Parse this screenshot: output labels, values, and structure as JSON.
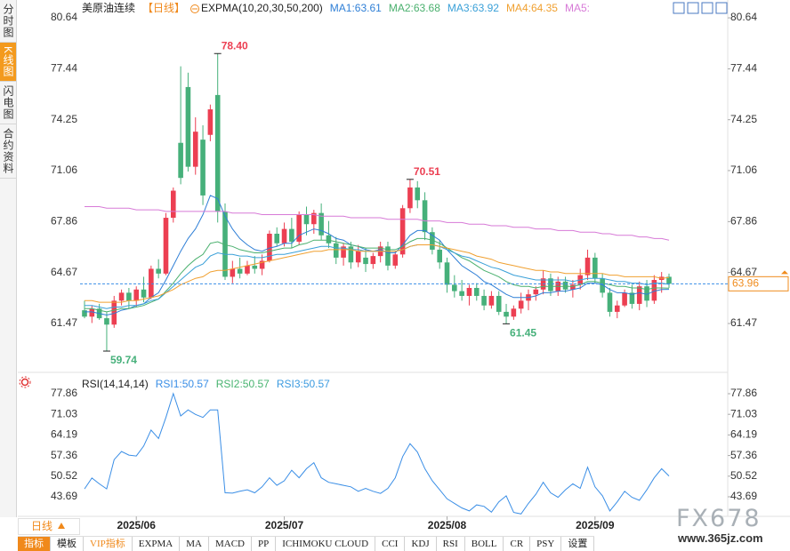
{
  "sidebar": [
    {
      "label": "分时图"
    },
    {
      "label": "K线图",
      "active": true
    },
    {
      "label": "闪电图"
    },
    {
      "label": "合约资料"
    }
  ],
  "toolbar": [
    {
      "label": "指标",
      "active": true
    },
    {
      "label": "模板"
    },
    {
      "label": "VIP指标",
      "highlight": true
    },
    {
      "label": "EXPMA"
    },
    {
      "label": "MA"
    },
    {
      "label": "MACD"
    },
    {
      "label": "PP"
    },
    {
      "label": "ICHIMOKU CLOUD"
    },
    {
      "label": "CCI"
    },
    {
      "label": "KDJ"
    },
    {
      "label": "RSI"
    },
    {
      "label": "BOLL"
    },
    {
      "label": "CR"
    },
    {
      "label": "PSY"
    },
    {
      "label": "设置"
    }
  ],
  "period_button": "日线",
  "watermark": {
    "logo": "FX678",
    "url": "www.365jz.com"
  },
  "chart_data": [
    {
      "type": "candlestick",
      "title": "美原油连续",
      "period": "【日线】",
      "indicator": "EXPMA(10,20,30,50,200)",
      "up_color": "#ec3f52",
      "down_color": "#46b07a",
      "categories": [
        null,
        null,
        null,
        null,
        null,
        null,
        null,
        "2025/06",
        null,
        null,
        null,
        null,
        null,
        null,
        null,
        null,
        null,
        null,
        null,
        null,
        null,
        null,
        null,
        null,
        null,
        null,
        null,
        "2025/07",
        null,
        null,
        null,
        null,
        null,
        null,
        null,
        null,
        null,
        null,
        null,
        null,
        null,
        null,
        null,
        null,
        null,
        null,
        null,
        null,
        null,
        "2025/08",
        null,
        null,
        null,
        null,
        null,
        null,
        null,
        null,
        null,
        null,
        null,
        null,
        null,
        null,
        null,
        null,
        null,
        null,
        null,
        "2025/09",
        null,
        null,
        null,
        null,
        null,
        null,
        null,
        null,
        null,
        null
      ],
      "open": [
        62.3,
        61.9,
        62.4,
        61.8,
        61.4,
        62.9,
        63.4,
        62.9,
        63.6,
        63.1,
        64.9,
        64.6,
        68.1,
        72.8,
        76.3,
        71.3,
        73.0,
        73.3,
        75.8,
        68.5,
        64.4,
        64.9,
        64.6,
        65.1,
        64.9,
        65.4,
        67.1,
        66.5,
        67.4,
        66.6,
        68.3,
        67.7,
        68.4,
        67.0,
        66.5,
        65.6,
        66.3,
        65.3,
        65.6,
        65.2,
        65.7,
        66.3,
        65.1,
        65.8,
        68.7,
        70.0,
        69.2,
        67.2,
        66.1,
        65.3,
        63.9,
        63.5,
        63.2,
        63.7,
        63.2,
        62.6,
        63.2,
        62.2,
        61.9,
        62.4,
        62.9,
        63.3,
        63.6,
        64.3,
        63.5,
        64.1,
        63.6,
        63.9,
        64.5,
        65.6,
        64.3,
        63.4,
        62.2,
        62.6,
        63.4,
        62.7,
        63.8,
        62.9,
        64.2,
        64.4
      ],
      "high": [
        62.9,
        62.6,
        62.7,
        62.2,
        63.2,
        63.6,
        63.7,
        63.8,
        64.4,
        65.1,
        65.5,
        68.4,
        70.0,
        77.6,
        77.2,
        74.4,
        73.9,
        75.2,
        78.4,
        69.0,
        65.4,
        65.6,
        65.4,
        65.7,
        65.8,
        67.3,
        67.5,
        67.8,
        68.1,
        68.5,
        68.8,
        68.6,
        69.0,
        67.9,
        66.9,
        66.5,
        66.6,
        66.4,
        66.2,
        65.9,
        66.6,
        66.6,
        66.0,
        68.9,
        70.51,
        70.4,
        69.7,
        67.5,
        66.7,
        65.6,
        64.5,
        64.2,
        63.9,
        64.0,
        63.6,
        63.5,
        63.5,
        62.7,
        62.6,
        63.4,
        63.6,
        63.8,
        64.8,
        64.6,
        64.4,
        64.4,
        64.2,
        64.9,
        66.1,
        65.9,
        64.6,
        63.7,
        62.9,
        63.6,
        63.9,
        64.1,
        64.2,
        64.5,
        64.7,
        64.6
      ],
      "low": [
        61.8,
        61.5,
        61.7,
        59.74,
        61.2,
        62.6,
        62.4,
        62.5,
        62.8,
        63.0,
        64.3,
        64.5,
        67.8,
        70.2,
        71.0,
        70.8,
        68.9,
        72.9,
        67.8,
        64.2,
        64.0,
        64.3,
        64.5,
        64.6,
        64.5,
        65.3,
        66.3,
        66.3,
        66.2,
        66.4,
        67.0,
        67.1,
        66.7,
        66.2,
        65.2,
        65.1,
        64.9,
        65.0,
        64.7,
        64.9,
        65.3,
        64.8,
        64.9,
        65.6,
        68.4,
        68.7,
        66.7,
        65.8,
        64.9,
        63.4,
        63.1,
        62.9,
        62.6,
        62.9,
        62.3,
        62.4,
        62.0,
        61.45,
        61.7,
        62.1,
        62.3,
        62.9,
        63.3,
        63.2,
        63.2,
        63.4,
        63.1,
        63.6,
        64.2,
        64.0,
        63.1,
        61.9,
        61.8,
        62.5,
        62.4,
        62.3,
        62.5,
        62.7,
        63.4,
        63.7
      ],
      "close": [
        61.9,
        62.4,
        61.8,
        61.4,
        62.9,
        63.4,
        62.9,
        63.6,
        63.1,
        64.9,
        64.6,
        68.1,
        69.8,
        70.6,
        71.3,
        73.5,
        69.5,
        74.9,
        68.5,
        64.4,
        64.9,
        64.6,
        65.1,
        64.9,
        65.4,
        67.1,
        66.5,
        67.4,
        66.6,
        68.3,
        67.7,
        68.4,
        67.0,
        66.5,
        65.6,
        66.3,
        65.3,
        66.0,
        65.2,
        65.7,
        66.3,
        65.1,
        65.8,
        68.7,
        70.0,
        69.2,
        67.2,
        66.1,
        65.3,
        63.9,
        63.5,
        63.2,
        63.7,
        63.2,
        62.6,
        63.2,
        62.2,
        61.9,
        62.4,
        62.9,
        63.3,
        63.6,
        64.3,
        63.5,
        64.1,
        63.6,
        63.9,
        64.5,
        65.6,
        64.3,
        63.4,
        62.2,
        62.6,
        63.4,
        62.7,
        63.8,
        62.9,
        64.2,
        64.4,
        63.96
      ],
      "series": [
        {
          "name": "MA1:63.61",
          "color": "#2f7fd6",
          "values": [
            62.2,
            62.2,
            62.1,
            62.0,
            62.1,
            62.3,
            62.4,
            62.6,
            62.7,
            63.1,
            63.4,
            64.2,
            65.1,
            66.0,
            66.8,
            67.4,
            68.3,
            69.5,
            69.3,
            68.2,
            67.4,
            66.8,
            66.4,
            66.1,
            66.0,
            66.2,
            66.3,
            66.5,
            66.5,
            67.0,
            67.2,
            67.4,
            67.3,
            67.1,
            66.8,
            66.7,
            66.4,
            66.3,
            66.1,
            66.0,
            66.1,
            65.9,
            65.9,
            66.4,
            67.0,
            67.3,
            67.3,
            67.0,
            66.7,
            66.1,
            65.6,
            65.1,
            64.8,
            64.5,
            64.1,
            63.9,
            63.6,
            63.3,
            63.1,
            63.1,
            63.1,
            63.2,
            63.4,
            63.4,
            63.5,
            63.5,
            63.6,
            63.7,
            64.0,
            64.0,
            63.9,
            63.6,
            63.4,
            63.4,
            63.3,
            63.4,
            63.3,
            63.5,
            63.6,
            63.61
          ]
        },
        {
          "name": "MA2:63.68",
          "color": "#4ab06e",
          "values": [
            62.4,
            62.4,
            62.3,
            62.2,
            62.3,
            62.4,
            62.4,
            62.5,
            62.6,
            62.8,
            63.0,
            63.5,
            64.0,
            64.6,
            65.1,
            65.5,
            65.8,
            66.5,
            66.6,
            66.4,
            66.3,
            66.1,
            66.0,
            65.9,
            65.9,
            66.0,
            66.1,
            66.2,
            66.2,
            66.4,
            66.5,
            66.7,
            66.7,
            66.7,
            66.6,
            66.5,
            66.4,
            66.3,
            66.2,
            66.2,
            66.2,
            66.1,
            66.1,
            66.3,
            66.6,
            66.8,
            66.8,
            66.7,
            66.5,
            66.2,
            65.9,
            65.6,
            65.4,
            65.1,
            64.8,
            64.6,
            64.4,
            64.1,
            63.9,
            63.8,
            63.8,
            63.7,
            63.8,
            63.8,
            63.8,
            63.8,
            63.8,
            63.9,
            64.1,
            64.1,
            64.0,
            63.9,
            63.8,
            63.8,
            63.7,
            63.7,
            63.6,
            63.7,
            63.7,
            63.68
          ]
        },
        {
          "name": "MA3:63.92",
          "color": "#3aa0d8",
          "values": [
            62.6,
            62.6,
            62.5,
            62.4,
            62.5,
            62.5,
            62.6,
            62.6,
            62.7,
            62.9,
            63.0,
            63.4,
            63.8,
            64.2,
            64.6,
            65.0,
            65.2,
            65.7,
            65.9,
            65.8,
            65.8,
            65.7,
            65.7,
            65.6,
            65.6,
            65.7,
            65.8,
            65.8,
            65.9,
            66.0,
            66.1,
            66.2,
            66.3,
            66.3,
            66.2,
            66.2,
            66.1,
            66.1,
            66.0,
            66.0,
            66.0,
            66.0,
            66.0,
            66.1,
            66.3,
            66.4,
            66.4,
            66.4,
            66.3,
            66.1,
            65.9,
            65.7,
            65.6,
            65.4,
            65.2,
            65.0,
            64.9,
            64.7,
            64.5,
            64.4,
            64.3,
            64.2,
            64.2,
            64.2,
            64.2,
            64.2,
            64.1,
            64.2,
            64.3,
            64.3,
            64.3,
            64.2,
            64.1,
            64.1,
            64.0,
            64.0,
            63.9,
            64.0,
            64.0,
            63.92
          ]
        },
        {
          "name": "MA4:64.35",
          "color": "#f0a030",
          "values": [
            62.9,
            62.9,
            62.8,
            62.8,
            62.8,
            62.8,
            62.9,
            62.9,
            63.0,
            63.1,
            63.2,
            63.4,
            63.6,
            63.9,
            64.1,
            64.3,
            64.4,
            64.7,
            64.8,
            64.8,
            64.9,
            65.0,
            65.1,
            65.2,
            65.3,
            65.4,
            65.5,
            65.6,
            65.7,
            65.8,
            65.9,
            66.0,
            66.0,
            66.1,
            66.1,
            66.1,
            66.1,
            66.0,
            66.0,
            66.0,
            66.0,
            66.0,
            66.0,
            66.1,
            66.3,
            66.4,
            66.4,
            66.4,
            66.3,
            66.2,
            66.1,
            66.0,
            65.9,
            65.7,
            65.6,
            65.5,
            65.3,
            65.2,
            65.1,
            65.0,
            64.9,
            64.8,
            64.8,
            64.7,
            64.7,
            64.6,
            64.6,
            64.6,
            64.6,
            64.6,
            64.6,
            64.5,
            64.5,
            64.4,
            64.4,
            64.4,
            64.4,
            64.4,
            64.3,
            64.35
          ]
        },
        {
          "name": "MA5:",
          "color": "#d77ad7",
          "values": [
            68.8,
            68.8,
            68.8,
            68.7,
            68.7,
            68.7,
            68.7,
            68.6,
            68.6,
            68.6,
            68.6,
            68.5,
            68.5,
            68.5,
            68.5,
            68.5,
            68.5,
            68.5,
            68.5,
            68.5,
            68.4,
            68.4,
            68.4,
            68.4,
            68.3,
            68.3,
            68.3,
            68.3,
            68.3,
            68.3,
            68.3,
            68.3,
            68.2,
            68.2,
            68.2,
            68.2,
            68.1,
            68.1,
            68.1,
            68.1,
            68.1,
            68.0,
            68.0,
            68.0,
            68.0,
            68.0,
            67.9,
            67.9,
            67.9,
            67.8,
            67.8,
            67.8,
            67.7,
            67.7,
            67.7,
            67.6,
            67.6,
            67.6,
            67.5,
            67.5,
            67.5,
            67.4,
            67.4,
            67.4,
            67.3,
            67.3,
            67.3,
            67.2,
            67.2,
            67.2,
            67.1,
            67.1,
            67.0,
            67.0,
            67.0,
            66.9,
            66.9,
            66.8,
            66.8,
            66.7
          ]
        }
      ],
      "ylim": [
        58.46,
        81.48
      ],
      "yticks": [
        80.64,
        77.44,
        74.25,
        71.06,
        67.86,
        64.67,
        61.47
      ],
      "last_price": 63.96,
      "last_color": "#f08c1e",
      "annotations": [
        {
          "value": 78.4,
          "label": "78.40"
        },
        {
          "value": 70.51,
          "label": "70.51"
        },
        {
          "value": 59.74,
          "label": "59.74"
        },
        {
          "value": 61.45,
          "label": "61.45"
        }
      ]
    },
    {
      "type": "line",
      "title": "RSI(14,14,14)",
      "series": [
        {
          "name": "RSI1:50.57",
          "color": "#3a8ee6",
          "values": [
            46.3,
            49.9,
            48.0,
            46.3,
            56.0,
            58.7,
            57.5,
            57.2,
            60.5,
            65.8,
            63.0,
            70.0,
            77.9,
            70.5,
            72.5,
            71.0,
            70.0,
            72.5,
            72.5,
            45.0,
            44.9,
            45.5,
            46.0,
            45.0,
            47.0,
            50.0,
            47.5,
            49.0,
            52.5,
            50.0,
            53.0,
            55.0,
            50.0,
            48.5,
            48.0,
            47.5,
            47.0,
            45.5,
            46.5,
            45.5,
            44.8,
            46.5,
            50.0,
            57.0,
            61.3,
            58.5,
            53.0,
            49.0,
            46.0,
            43.0,
            41.5,
            40.0,
            39.0,
            41.0,
            40.5,
            38.6,
            42.0,
            44.0,
            38.5,
            38.0,
            41.5,
            44.5,
            48.5,
            45.0,
            43.5,
            46.0,
            48.0,
            46.5,
            53.5,
            47.0,
            44.0,
            39.0,
            42.0,
            45.5,
            43.5,
            42.5,
            46.0,
            50.0,
            53.0,
            50.57
          ]
        }
      ],
      "legend_extra": [
        {
          "name": "RSI2:50.57",
          "color": "#47b36f"
        },
        {
          "name": "RSI3:50.57",
          "color": "#3c9be0"
        }
      ],
      "ylim": [
        37.5,
        81.69
      ],
      "yticks": [
        77.86,
        71.03,
        64.19,
        57.36,
        50.52,
        43.69
      ]
    }
  ]
}
